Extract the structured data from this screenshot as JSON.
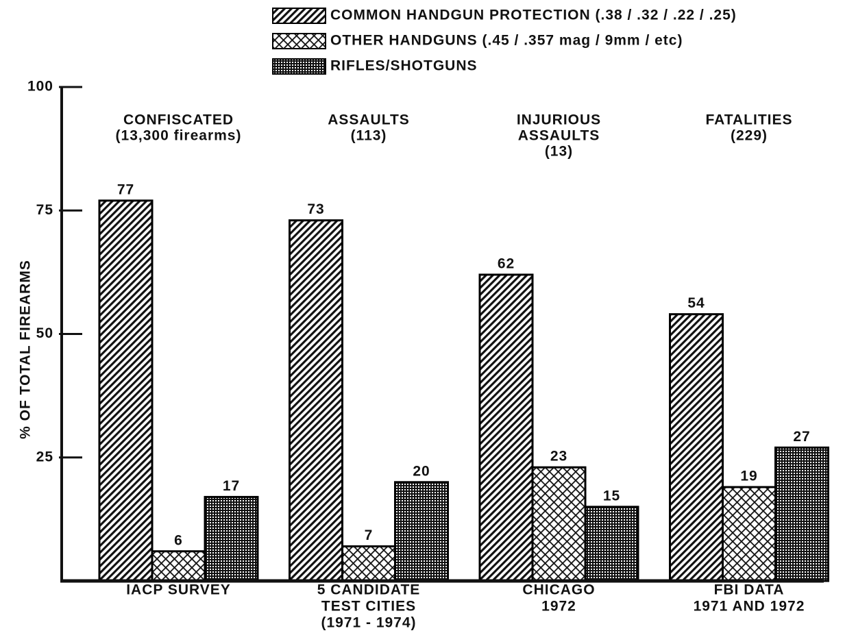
{
  "chart_data": {
    "type": "bar",
    "y_label": "% OF TOTAL FIREARMS",
    "categories": [
      [
        "IACP SURVEY"
      ],
      [
        "5 CANDIDATE",
        "TEST CITIES",
        "(1971 - 1974)"
      ],
      [
        "CHICAGO",
        "1972"
      ],
      [
        "FBI DATA",
        "1971 AND 1972"
      ]
    ],
    "annotations": [
      [
        "CONFISCATED",
        "(13,300 firearms)"
      ],
      [
        "ASSAULTS",
        "(113)"
      ],
      [
        "INJURIOUS",
        "ASSAULTS",
        "(13)"
      ],
      [
        "FATALITIES",
        "(229)"
      ]
    ],
    "series": [
      {
        "name": "COMMON HANDGUN PROTECTION (.38 / .32 / .22 / .25)",
        "color": "#000000",
        "hatch": "diagonal",
        "values": [
          77,
          73,
          62,
          54
        ]
      },
      {
        "name": "OTHER HANDGUNS (.45 / .357 mag / 9mm / etc)",
        "color": "#000000",
        "hatch": "cross",
        "values": [
          6,
          7,
          23,
          19
        ]
      },
      {
        "name": "RIFLES/SHOTGUNS",
        "color": "#000000",
        "hatch": "grid",
        "values": [
          17,
          20,
          15,
          27
        ]
      }
    ],
    "ylim": [
      0,
      100
    ],
    "yticks": [
      25,
      50,
      75,
      100
    ],
    "legend": "top"
  }
}
